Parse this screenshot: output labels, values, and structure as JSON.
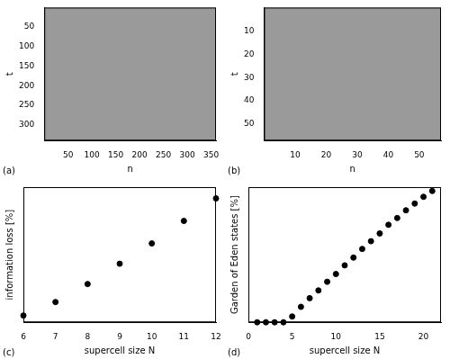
{
  "chart_data": [
    {
      "type": "image",
      "annotations": [
        "(a)"
      ],
      "x_label": "n",
      "y_label": "t",
      "xlim": [
        0,
        360
      ],
      "xticks": [
        50,
        100,
        150,
        200,
        250,
        300,
        350
      ],
      "ylim": [
        0,
        340
      ],
      "yticks": [
        50,
        100,
        150,
        200,
        250,
        300
      ],
      "grid": false
    },
    {
      "type": "image",
      "annotations": [
        "(b)"
      ],
      "x_label": "n",
      "y_label": "t",
      "xlim": [
        0,
        57
      ],
      "xticks": [
        10,
        20,
        30,
        40,
        50
      ],
      "ylim": [
        0,
        57
      ],
      "yticks": [
        10,
        20,
        30,
        40,
        50
      ],
      "grid": false
    },
    {
      "type": "scatter",
      "annotations": [
        "(c)"
      ],
      "x_label": "supercell size N",
      "y_label": "information loss [%]",
      "x": [
        6,
        7,
        8,
        9,
        10,
        11,
        12
      ],
      "values": [
        1.5,
        4.5,
        8.5,
        13,
        17.5,
        22.5,
        27.5
      ],
      "color": "#000000",
      "marker": "circle",
      "xlim": [
        6,
        12
      ],
      "xticks": [
        6,
        7,
        8,
        9,
        10,
        11,
        12
      ],
      "ylim": [
        0,
        30
      ],
      "tick_labels": "x",
      "grid": false
    },
    {
      "type": "scatter",
      "annotations": [
        "(d)"
      ],
      "x_label": "supercell size N",
      "y_label": "Garden of Eden states [%]",
      "x": [
        1,
        2,
        3,
        4,
        5,
        6,
        7,
        8,
        9,
        10,
        11,
        12,
        13,
        14,
        15,
        16,
        17,
        18,
        19,
        20,
        21
      ],
      "values": [
        0,
        0,
        0,
        0,
        3,
        8,
        12.5,
        16.5,
        21,
        25,
        29.5,
        33.5,
        38,
        42,
        46,
        50.5,
        54,
        58,
        61.5,
        65,
        68
      ],
      "color": "#000000",
      "marker": "circle",
      "xlim": [
        0,
        22
      ],
      "xticks": [
        0,
        5,
        10,
        15,
        20
      ],
      "ylim": [
        0,
        70
      ],
      "tick_labels": "x",
      "grid": false
    }
  ]
}
